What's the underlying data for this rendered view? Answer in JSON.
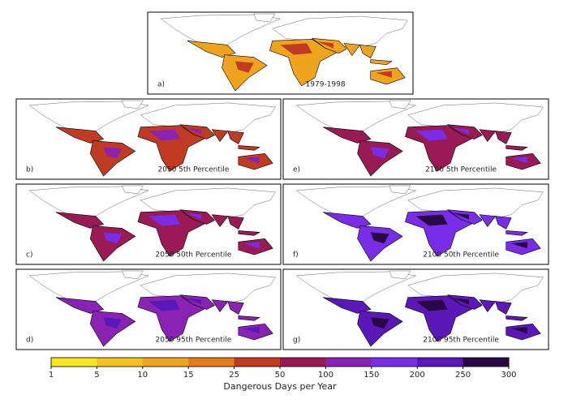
{
  "panels": [
    {
      "label": "a)",
      "caption": "1979-1998"
    },
    {
      "label": "b)",
      "caption": "2050 5th Percentile"
    },
    {
      "label": "c)",
      "caption": "2050 50th Percentile"
    },
    {
      "label": "d)",
      "caption": "2050 95th Percentile"
    },
    {
      "label": "e)",
      "caption": "2100 5th Percentile"
    },
    {
      "label": "f)",
      "caption": "2100 50th Percentile"
    },
    {
      "label": "g)",
      "caption": "2100 95th Percentile"
    }
  ],
  "colorbar": {
    "ticks": [
      1,
      5,
      10,
      15,
      25,
      50,
      100,
      150,
      200,
      250,
      300
    ],
    "colors": [
      "#f7e71d",
      "#f4c21c",
      "#efa41e",
      "#e57c1c",
      "#c13a22",
      "#9a1a55",
      "#8a22b4",
      "#7a2de6",
      "#5b17b8",
      "#2a0846"
    ],
    "label": "Dangerous Days per Year"
  }
}
